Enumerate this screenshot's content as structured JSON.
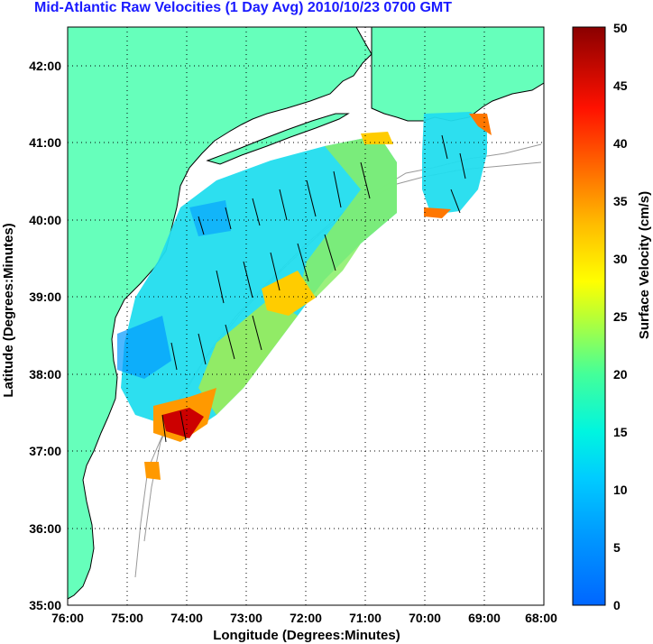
{
  "title": "Mid-Atlantic Raw Velocities (1 Day Avg) 2010/10/23 0700 GMT",
  "map": {
    "xlabel": "Longitude (Degrees:Minutes)",
    "ylabel": "Latitude (Degrees:Minutes)",
    "x_ticks": [
      "76:00",
      "75:00",
      "74:00",
      "73:00",
      "72:00",
      "71:00",
      "70:00",
      "69:00",
      "68:00"
    ],
    "y_ticks": [
      "35:00",
      "36:00",
      "37:00",
      "38:00",
      "39:00",
      "40:00",
      "41:00",
      "42:00"
    ],
    "lon_range": [
      -76,
      -68
    ],
    "lat_range": [
      35,
      42.5
    ],
    "land_color": "#66ffbb",
    "grid": "dotted"
  },
  "colorbar": {
    "label": "Surface Velocity (cm/s)",
    "ticks": [
      "0",
      "5",
      "10",
      "15",
      "20",
      "25",
      "30",
      "35",
      "40",
      "45",
      "50"
    ],
    "range": [
      0,
      50
    ],
    "colormap": "jet"
  }
}
